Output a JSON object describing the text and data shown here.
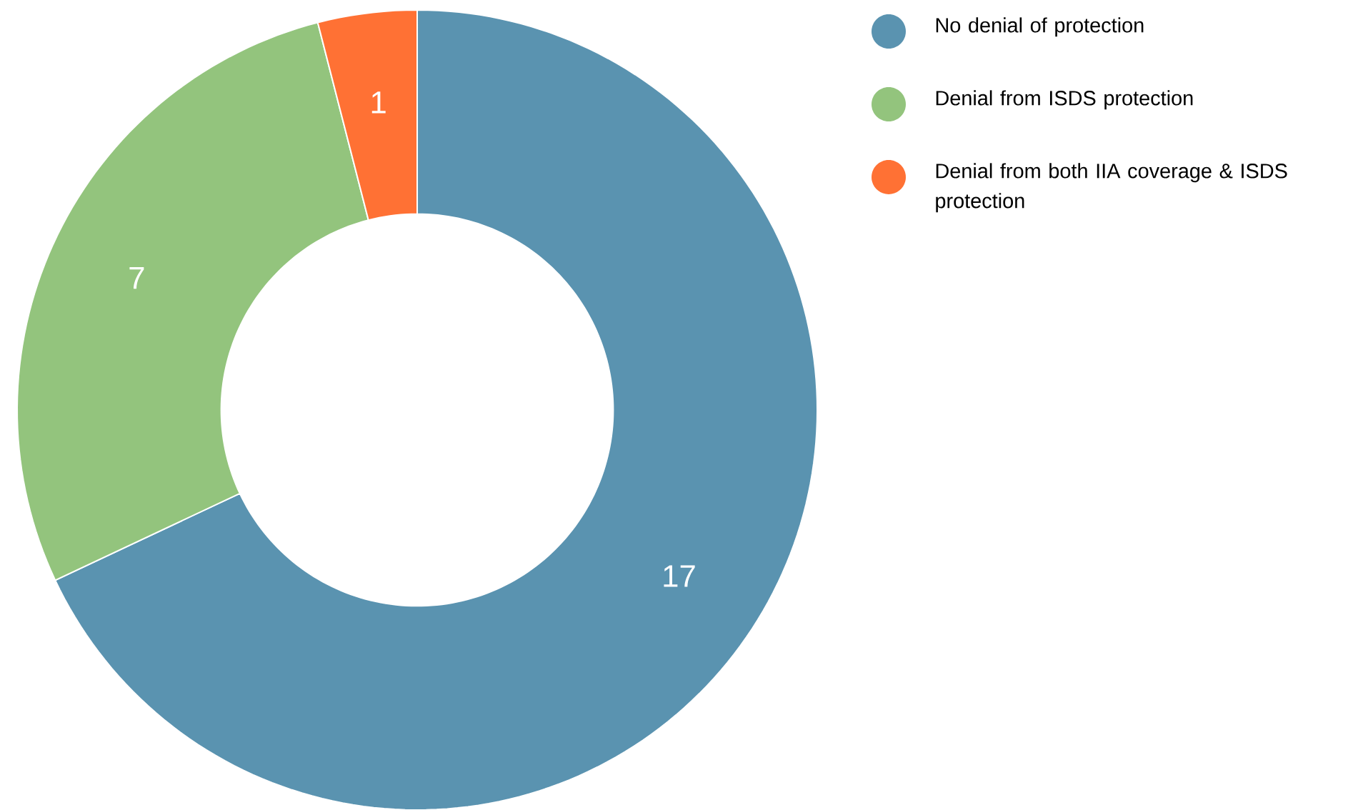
{
  "chart_data": {
    "type": "donut",
    "categories": [
      "No denial of protection",
      "Denial from ISDS protection",
      "Denial from both IIA coverage & ISDS protection"
    ],
    "values": [
      17,
      7,
      1
    ],
    "colors": [
      "#5a93b0",
      "#93c47d",
      "#ff7134"
    ],
    "data_labels": true,
    "legend": "top right"
  }
}
